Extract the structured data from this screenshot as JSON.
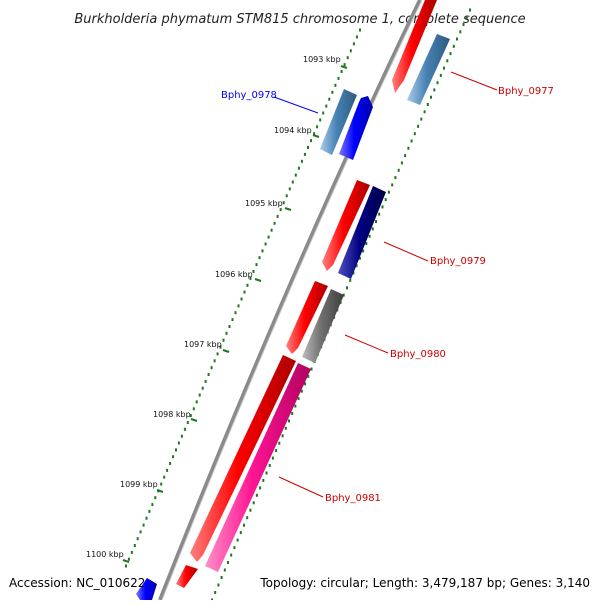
{
  "title": "Burkholderia phymatum STM815 chromosome 1, complete sequence",
  "footer": {
    "accession": "Accession: NC_010622",
    "topology": "Topology: circular; Length: 3,479,187 bp; Genes: 3,140"
  },
  "kbp_labels": [
    "1093 kbp",
    "1094 kbp",
    "1095 kbp",
    "1096 kbp",
    "1097 kbp",
    "1098 kbp",
    "1099 kbp",
    "1100 kbp"
  ],
  "genes": [
    {
      "label": "Bphy_0977",
      "color": "#cc0000"
    },
    {
      "label": "Bphy_0978",
      "color": "#0000ff"
    },
    {
      "label": "Bphy_0979",
      "color": "#cc0000"
    },
    {
      "label": "Bphy_0980",
      "color": "#cc0000"
    },
    {
      "label": "Bphy_0981",
      "color": "#cc0000"
    }
  ],
  "colors": {
    "backbone": "#8a8a8a",
    "ticks": "#1a7a1a",
    "forward_strand": "#ff0000",
    "reverse_strand": "#0000ff",
    "steelblue_feature": "#4682b4",
    "navy_feature": "#000080",
    "gray_feature": "#707070",
    "pink_feature": "#ff1493"
  }
}
